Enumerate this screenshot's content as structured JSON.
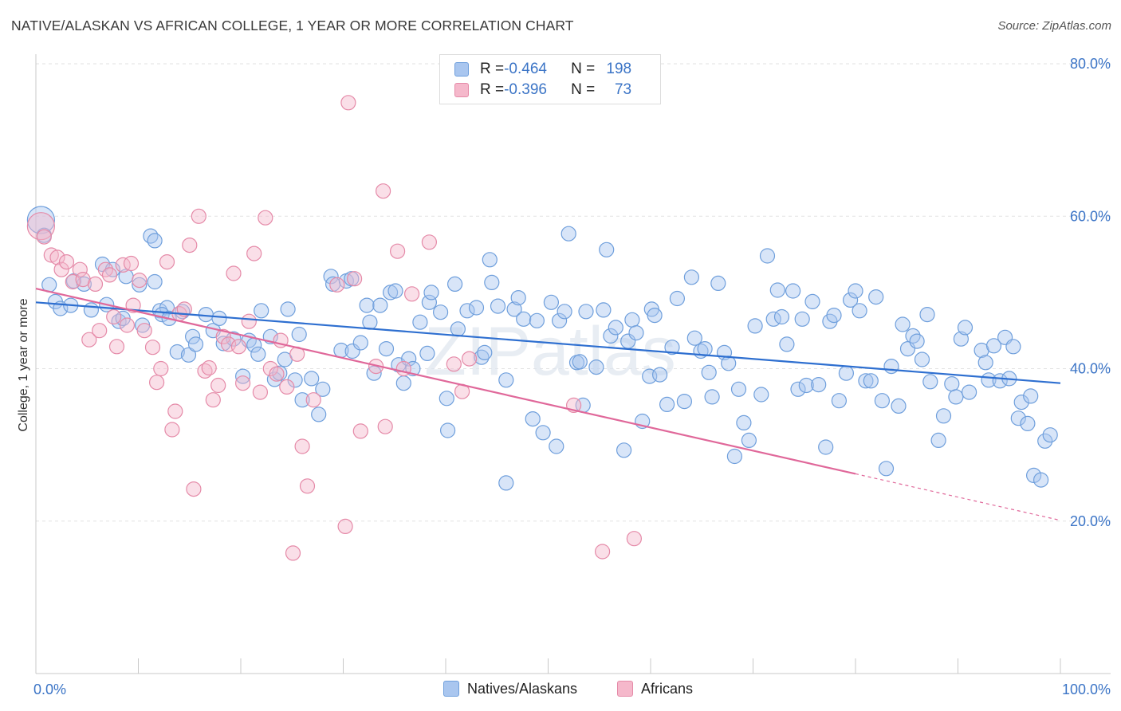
{
  "title": "NATIVE/ALASKAN VS AFRICAN COLLEGE, 1 YEAR OR MORE CORRELATION CHART",
  "source": "Source: ZipAtlas.com",
  "watermark": "ZIPatlas",
  "legend": {
    "rows": [
      {
        "r_label": "R = ",
        "r_value": "-0.464",
        "n_label": "N = ",
        "n_value": "198",
        "color": "#a9c6ef",
        "border": "#6f9fdc"
      },
      {
        "r_label": "R = ",
        "r_value": "-0.396",
        "n_label": "N = ",
        "n_value": "73",
        "color": "#f5b8cb",
        "border": "#e58aa8"
      }
    ]
  },
  "bottom_legend": [
    "Natives/Alaskans",
    "Africans"
  ],
  "chart_data": {
    "type": "scatter",
    "title": "NATIVE/ALASKAN VS AFRICAN COLLEGE, 1 YEAR OR MORE CORRELATION CHART",
    "xlabel": "",
    "ylabel": "College, 1 year or more",
    "xlim": [
      0,
      100
    ],
    "ylim": [
      0,
      85
    ],
    "x_tick_labels": [
      "0.0%",
      "100.0%"
    ],
    "y_ticks": [
      20,
      40,
      60,
      80
    ],
    "y_tick_labels": [
      "20.0%",
      "40.0%",
      "60.0%",
      "80.0%"
    ],
    "grid": true,
    "legend_position": "top-center",
    "series": [
      {
        "name": "Natives/Alaskans",
        "color": "#6f9fdc",
        "fill": "#a9c6ef",
        "trend": {
          "x": [
            0,
            100
          ],
          "y": [
            48.7,
            38.1
          ]
        },
        "points": [
          [
            0.5,
            59.5
          ],
          [
            0.8,
            57.5
          ],
          [
            1.3,
            51.0
          ],
          [
            1.9,
            48.8
          ],
          [
            2.4,
            47.9
          ],
          [
            3.4,
            48.3
          ],
          [
            3.7,
            51.5
          ],
          [
            4.7,
            51.1
          ],
          [
            5.4,
            47.7
          ],
          [
            6.5,
            53.7
          ],
          [
            6.9,
            48.4
          ],
          [
            7.5,
            53.0
          ],
          [
            8.1,
            46.2
          ],
          [
            8.5,
            46.6
          ],
          [
            8.8,
            52.1
          ],
          [
            10.1,
            51.0
          ],
          [
            10.4,
            45.7
          ],
          [
            11.2,
            57.4
          ],
          [
            11.6,
            51.4
          ],
          [
            11.6,
            56.8
          ],
          [
            12.1,
            47.6
          ],
          [
            12.8,
            48.0
          ],
          [
            12.3,
            47.1
          ],
          [
            13.0,
            46.6
          ],
          [
            13.8,
            42.2
          ],
          [
            14.3,
            47.5
          ],
          [
            14.9,
            41.8
          ],
          [
            15.3,
            44.2
          ],
          [
            15.6,
            43.2
          ],
          [
            16.6,
            47.1
          ],
          [
            17.3,
            45.0
          ],
          [
            17.9,
            46.6
          ],
          [
            18.3,
            43.3
          ],
          [
            19.3,
            43.9
          ],
          [
            20.2,
            39.0
          ],
          [
            20.8,
            43.7
          ],
          [
            21.3,
            43.1
          ],
          [
            21.7,
            41.9
          ],
          [
            22.0,
            47.6
          ],
          [
            22.9,
            44.2
          ],
          [
            23.3,
            38.6
          ],
          [
            23.8,
            39.4
          ],
          [
            24.3,
            41.2
          ],
          [
            24.6,
            47.8
          ],
          [
            25.3,
            38.5
          ],
          [
            25.7,
            44.5
          ],
          [
            26.0,
            35.9
          ],
          [
            26.9,
            38.7
          ],
          [
            27.6,
            34.0
          ],
          [
            28.0,
            37.3
          ],
          [
            28.8,
            52.1
          ],
          [
            29.0,
            51.1
          ],
          [
            29.8,
            42.4
          ],
          [
            30.3,
            51.5
          ],
          [
            30.8,
            51.8
          ],
          [
            30.9,
            42.3
          ],
          [
            31.7,
            43.4
          ],
          [
            32.3,
            48.3
          ],
          [
            32.6,
            46.1
          ],
          [
            33.0,
            39.4
          ],
          [
            33.6,
            48.3
          ],
          [
            34.2,
            42.6
          ],
          [
            34.6,
            50.0
          ],
          [
            35.1,
            50.2
          ],
          [
            35.4,
            40.5
          ],
          [
            35.9,
            38.1
          ],
          [
            36.4,
            41.3
          ],
          [
            36.8,
            40.0
          ],
          [
            37.5,
            46.1
          ],
          [
            38.2,
            42.0
          ],
          [
            38.4,
            48.7
          ],
          [
            38.6,
            50.0
          ],
          [
            39.5,
            47.4
          ],
          [
            40.1,
            36.1
          ],
          [
            40.2,
            31.9
          ],
          [
            40.9,
            51.1
          ],
          [
            41.2,
            45.2
          ],
          [
            42.1,
            47.6
          ],
          [
            43.0,
            48.0
          ],
          [
            43.5,
            41.5
          ],
          [
            43.8,
            42.1
          ],
          [
            44.3,
            54.3
          ],
          [
            44.5,
            51.3
          ],
          [
            45.1,
            48.2
          ],
          [
            45.9,
            25.0
          ],
          [
            45.9,
            38.5
          ],
          [
            46.7,
            47.8
          ],
          [
            47.1,
            49.3
          ],
          [
            47.6,
            46.5
          ],
          [
            48.5,
            33.4
          ],
          [
            48.9,
            46.3
          ],
          [
            49.5,
            31.6
          ],
          [
            50.3,
            48.7
          ],
          [
            50.8,
            29.8
          ],
          [
            51.1,
            46.3
          ],
          [
            51.6,
            47.5
          ],
          [
            52.0,
            57.7
          ],
          [
            52.8,
            40.8
          ],
          [
            53.1,
            40.9
          ],
          [
            53.4,
            35.2
          ],
          [
            53.7,
            47.5
          ],
          [
            54.7,
            40.2
          ],
          [
            55.4,
            47.7
          ],
          [
            55.7,
            55.6
          ],
          [
            56.1,
            44.3
          ],
          [
            56.6,
            45.4
          ],
          [
            57.4,
            29.3
          ],
          [
            57.8,
            43.6
          ],
          [
            58.2,
            46.4
          ],
          [
            58.6,
            44.7
          ],
          [
            59.2,
            33.1
          ],
          [
            59.9,
            39.0
          ],
          [
            60.1,
            47.8
          ],
          [
            60.4,
            47.0
          ],
          [
            60.9,
            39.2
          ],
          [
            61.6,
            35.3
          ],
          [
            62.1,
            42.8
          ],
          [
            62.6,
            49.2
          ],
          [
            63.3,
            35.7
          ],
          [
            64.0,
            52.0
          ],
          [
            64.3,
            44.0
          ],
          [
            64.9,
            42.3
          ],
          [
            65.3,
            42.6
          ],
          [
            65.7,
            39.5
          ],
          [
            66.0,
            36.3
          ],
          [
            66.6,
            51.2
          ],
          [
            67.2,
            42.1
          ],
          [
            67.6,
            40.7
          ],
          [
            68.2,
            28.5
          ],
          [
            68.6,
            37.3
          ],
          [
            69.1,
            32.9
          ],
          [
            69.6,
            30.6
          ],
          [
            70.2,
            45.6
          ],
          [
            70.8,
            36.6
          ],
          [
            71.4,
            54.8
          ],
          [
            72.0,
            46.5
          ],
          [
            72.4,
            50.3
          ],
          [
            72.8,
            46.8
          ],
          [
            73.3,
            43.2
          ],
          [
            73.9,
            50.2
          ],
          [
            74.4,
            37.3
          ],
          [
            74.8,
            46.5
          ],
          [
            75.2,
            37.8
          ],
          [
            75.8,
            48.8
          ],
          [
            76.4,
            37.9
          ],
          [
            77.1,
            29.7
          ],
          [
            77.5,
            46.2
          ],
          [
            77.9,
            47.0
          ],
          [
            78.4,
            35.8
          ],
          [
            79.1,
            39.4
          ],
          [
            79.5,
            49.0
          ],
          [
            80.0,
            50.2
          ],
          [
            80.4,
            47.6
          ],
          [
            81.0,
            38.4
          ],
          [
            81.5,
            38.4
          ],
          [
            82.0,
            49.4
          ],
          [
            82.6,
            35.8
          ],
          [
            83.0,
            26.9
          ],
          [
            83.5,
            40.3
          ],
          [
            84.2,
            35.1
          ],
          [
            84.6,
            45.8
          ],
          [
            85.1,
            42.6
          ],
          [
            85.6,
            44.3
          ],
          [
            86.0,
            43.6
          ],
          [
            86.5,
            41.2
          ],
          [
            87.0,
            47.1
          ],
          [
            87.3,
            38.3
          ],
          [
            88.1,
            30.6
          ],
          [
            88.6,
            33.8
          ],
          [
            89.4,
            38.0
          ],
          [
            89.8,
            36.3
          ],
          [
            90.3,
            43.9
          ],
          [
            90.7,
            45.4
          ],
          [
            91.1,
            36.9
          ],
          [
            92.3,
            42.4
          ],
          [
            92.7,
            40.8
          ],
          [
            93.0,
            38.5
          ],
          [
            93.5,
            43.0
          ],
          [
            94.1,
            38.4
          ],
          [
            94.6,
            44.1
          ],
          [
            95.0,
            38.7
          ],
          [
            95.4,
            42.9
          ],
          [
            95.9,
            33.5
          ],
          [
            96.2,
            35.6
          ],
          [
            96.8,
            32.8
          ],
          [
            97.1,
            36.4
          ],
          [
            97.4,
            26.0
          ],
          [
            98.1,
            25.4
          ],
          [
            98.5,
            30.5
          ],
          [
            99.0,
            31.3
          ]
        ]
      },
      {
        "name": "Africans",
        "color": "#e58aa8",
        "fill": "#f5b8cb",
        "trend": {
          "x": [
            0,
            80.0,
            100
          ],
          "y": [
            50.5,
            26.2,
            20.1
          ]
        },
        "points": [
          [
            0.5,
            58.7
          ],
          [
            0.8,
            57.3
          ],
          [
            1.5,
            54.9
          ],
          [
            2.1,
            54.6
          ],
          [
            2.5,
            53.0
          ],
          [
            3.0,
            54.0
          ],
          [
            3.6,
            51.4
          ],
          [
            4.3,
            53.0
          ],
          [
            4.6,
            51.7
          ],
          [
            5.2,
            43.8
          ],
          [
            5.8,
            51.1
          ],
          [
            6.2,
            45.0
          ],
          [
            6.8,
            53.0
          ],
          [
            7.2,
            52.3
          ],
          [
            7.6,
            46.8
          ],
          [
            7.9,
            42.9
          ],
          [
            8.5,
            53.6
          ],
          [
            8.9,
            45.7
          ],
          [
            9.3,
            53.8
          ],
          [
            9.5,
            48.3
          ],
          [
            10.1,
            51.6
          ],
          [
            10.6,
            45.0
          ],
          [
            11.4,
            42.8
          ],
          [
            11.8,
            38.2
          ],
          [
            12.2,
            40.0
          ],
          [
            12.8,
            54.0
          ],
          [
            13.3,
            32.0
          ],
          [
            13.6,
            34.4
          ],
          [
            14.0,
            47.2
          ],
          [
            14.5,
            47.8
          ],
          [
            15.0,
            56.2
          ],
          [
            15.4,
            24.2
          ],
          [
            15.9,
            60.0
          ],
          [
            16.5,
            39.7
          ],
          [
            16.9,
            40.1
          ],
          [
            17.3,
            35.9
          ],
          [
            17.8,
            37.8
          ],
          [
            18.3,
            44.2
          ],
          [
            18.8,
            43.2
          ],
          [
            19.3,
            52.5
          ],
          [
            19.8,
            42.9
          ],
          [
            20.2,
            38.1
          ],
          [
            20.8,
            46.2
          ],
          [
            21.3,
            55.1
          ],
          [
            21.9,
            36.9
          ],
          [
            22.4,
            59.8
          ],
          [
            22.9,
            40.0
          ],
          [
            23.5,
            39.3
          ],
          [
            23.9,
            43.7
          ],
          [
            24.5,
            37.6
          ],
          [
            25.1,
            15.8
          ],
          [
            25.5,
            41.9
          ],
          [
            26.0,
            29.8
          ],
          [
            26.5,
            24.6
          ],
          [
            27.1,
            35.9
          ],
          [
            29.4,
            51.0
          ],
          [
            30.2,
            19.3
          ],
          [
            30.5,
            74.9
          ],
          [
            31.1,
            51.8
          ],
          [
            31.7,
            31.8
          ],
          [
            33.2,
            40.3
          ],
          [
            33.9,
            63.3
          ],
          [
            34.1,
            32.4
          ],
          [
            35.3,
            55.4
          ],
          [
            35.9,
            40.0
          ],
          [
            36.7,
            49.8
          ],
          [
            38.4,
            56.6
          ],
          [
            40.8,
            40.6
          ],
          [
            41.6,
            37.0
          ],
          [
            42.3,
            41.3
          ],
          [
            52.5,
            35.2
          ],
          [
            55.3,
            16.0
          ],
          [
            58.4,
            17.7
          ]
        ]
      }
    ]
  }
}
